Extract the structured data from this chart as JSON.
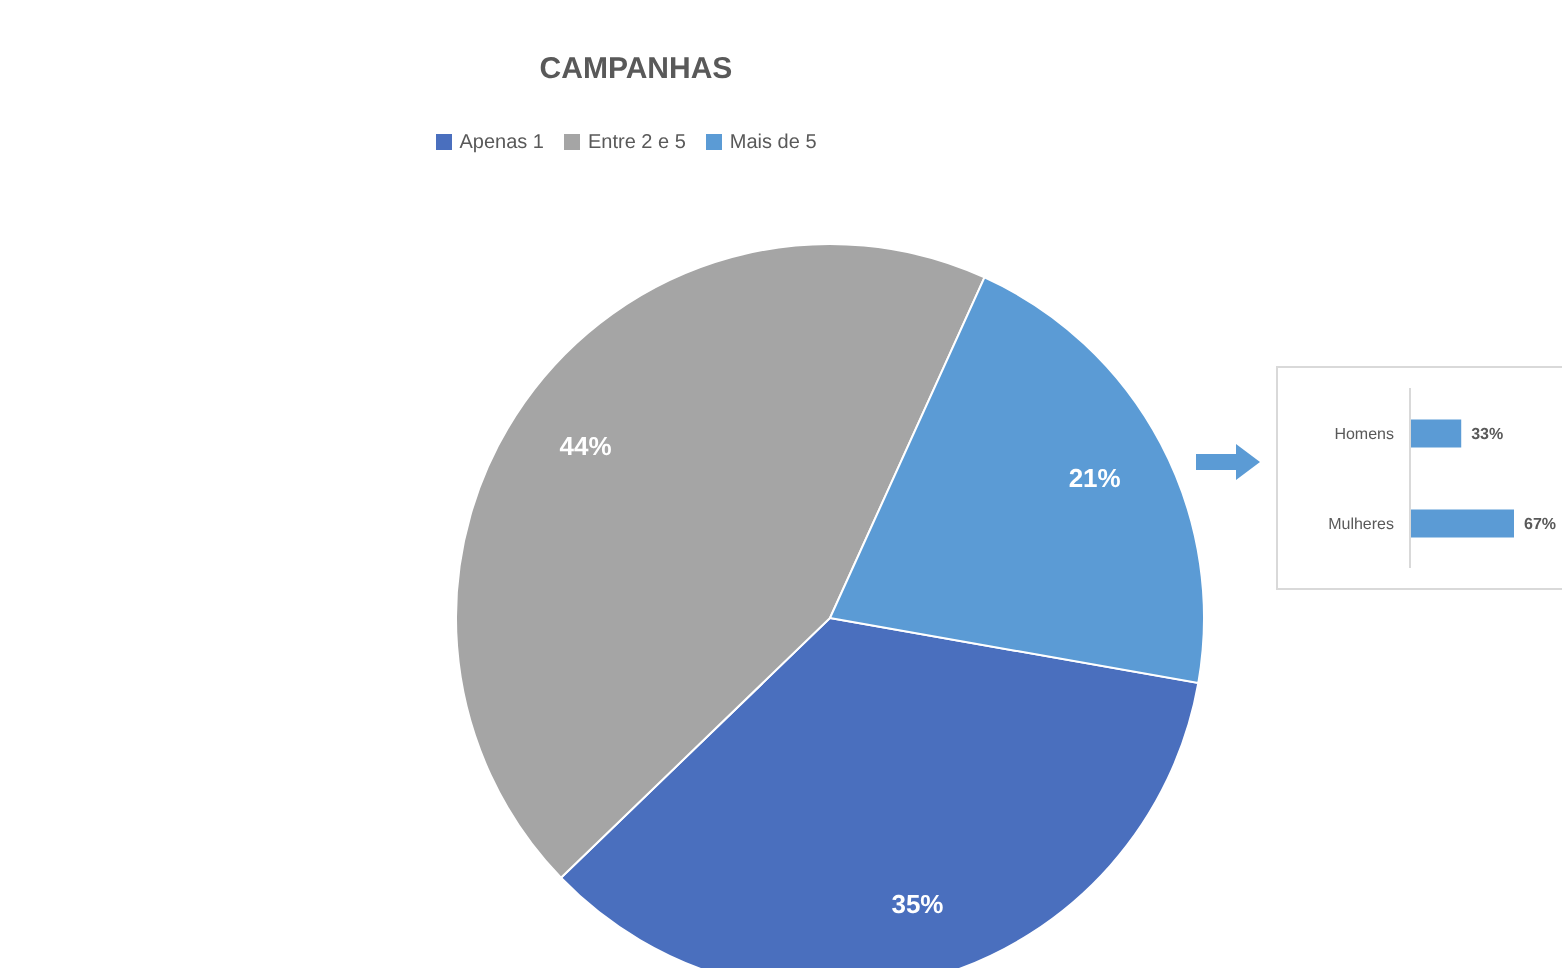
{
  "chart_data": [
    {
      "type": "pie",
      "title": "CAMPANHAS",
      "categories": [
        "Apenas 1",
        "Entre 2 e 5",
        "Mais de 5"
      ],
      "values": [
        35,
        44,
        21
      ],
      "colors": [
        "#4a6fbe",
        "#a5a5a5",
        "#5b9bd5"
      ],
      "value_labels": [
        "35%",
        "44%",
        "21%"
      ],
      "legend": "top"
    },
    {
      "type": "bar",
      "orientation": "horizontal",
      "categories": [
        "Homens",
        "Mulheres"
      ],
      "values": [
        33,
        67
      ],
      "color": "#5b9bd5",
      "value_labels": [
        "33%",
        "67%"
      ]
    }
  ]
}
